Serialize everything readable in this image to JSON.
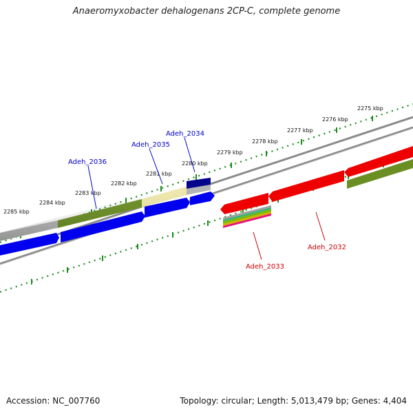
{
  "title": "Anaeromyxobacter dehalogenans 2CP-C, complete genome",
  "footer": {
    "accession": "Accession: NC_007760",
    "summary": "Topology: circular; Length: 5,013,479 bp; Genes: 4,404"
  },
  "ruler": {
    "unit": "kbp",
    "ticks": [
      "2285 kbp",
      "2284 kbp",
      "2283 kbp",
      "2282 kbp",
      "2281 kbp",
      "2280 kbp",
      "2279 kbp",
      "2278 kbp",
      "2277 kbp",
      "2276 kbp",
      "2275 kbp"
    ]
  },
  "gene_labels": {
    "adeh_2036": "Adeh_2036",
    "adeh_2035": "Adeh_2035",
    "adeh_2034": "Adeh_2034",
    "adeh_2033": "Adeh_2033",
    "adeh_2032": "Adeh_2032"
  },
  "colors": {
    "cds_forward": "#0000ee",
    "cds_reverse": "#ee0000",
    "cog_olive": "#6b8e23",
    "cog_gray": "#b4b4b4",
    "cog_khaki": "#eee8aa",
    "cog_navy": "#00008b",
    "backbone": "#8a8a8a",
    "tick_green": "#1a8a1a",
    "forward_label": "#0000cc",
    "reverse_label": "#cc0000"
  }
}
